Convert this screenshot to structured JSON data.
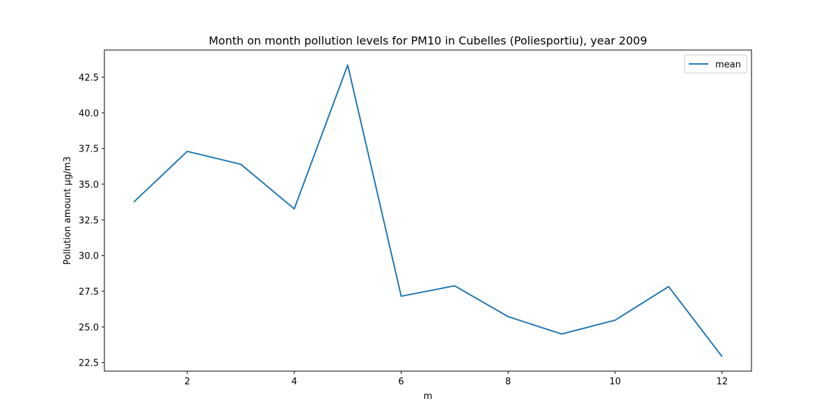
{
  "chart_data": {
    "type": "line",
    "title": "Month on month pollution levels for PM10 in Cubelles (Poliesportiu), year 2009",
    "xlabel": "m",
    "ylabel": "Pollution amount µg/m3",
    "x": [
      1,
      2,
      3,
      4,
      5,
      6,
      7,
      8,
      9,
      10,
      11,
      12
    ],
    "series": [
      {
        "name": "mean",
        "color": "#1f77b4",
        "values": [
          33.75,
          37.3,
          36.4,
          33.27,
          43.35,
          27.15,
          27.88,
          25.72,
          24.5,
          25.47,
          27.82,
          22.92
        ]
      }
    ],
    "xlim": [
      0.45,
      12.55
    ],
    "ylim": [
      21.9,
      44.4
    ],
    "xticks": [
      2,
      4,
      6,
      8,
      10,
      12
    ],
    "xtick_labels": [
      "2",
      "4",
      "6",
      "8",
      "10",
      "12"
    ],
    "yticks": [
      22.5,
      25.0,
      27.5,
      30.0,
      32.5,
      35.0,
      37.5,
      40.0,
      42.5
    ],
    "ytick_labels": [
      "22.5",
      "25.0",
      "27.5",
      "30.0",
      "32.5",
      "35.0",
      "37.5",
      "40.0",
      "42.5"
    ],
    "grid": false,
    "legend_position": "top-right"
  }
}
